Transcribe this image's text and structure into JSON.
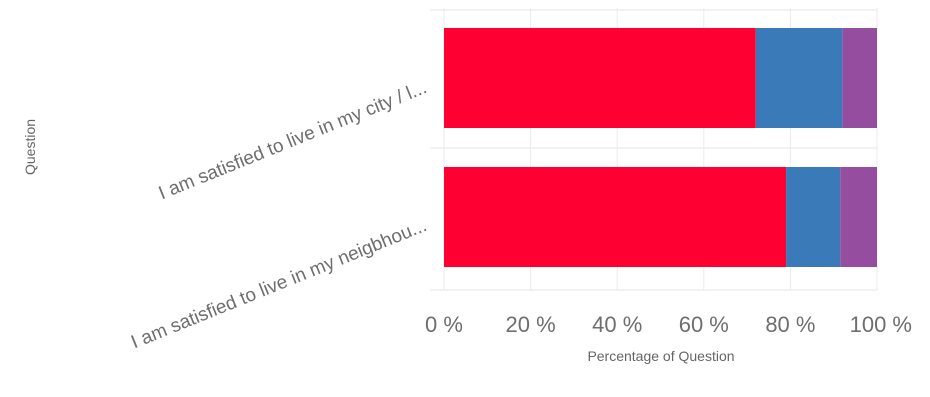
{
  "chart_data": {
    "type": "bar",
    "orientation": "horizontal",
    "stacked": true,
    "percent": true,
    "categories": [
      "I am satisfied to live in my city / l...",
      "I am satisfied to live in my neigbhou..."
    ],
    "series": [
      {
        "color": "#ff0033",
        "values": [
          72,
          79
        ]
      },
      {
        "color": "#3a7ab8",
        "values": [
          20,
          12.5
        ]
      },
      {
        "color": "#954d9f",
        "values": [
          8,
          8.5
        ]
      }
    ],
    "xlabel": "Percentage of Question",
    "ylabel": "Question",
    "xlim": [
      0,
      100
    ],
    "xticks": [
      "0 %",
      "20 %",
      "40 %",
      "60 %",
      "80 %",
      "100 %"
    ],
    "grid": true,
    "legend": "none"
  }
}
